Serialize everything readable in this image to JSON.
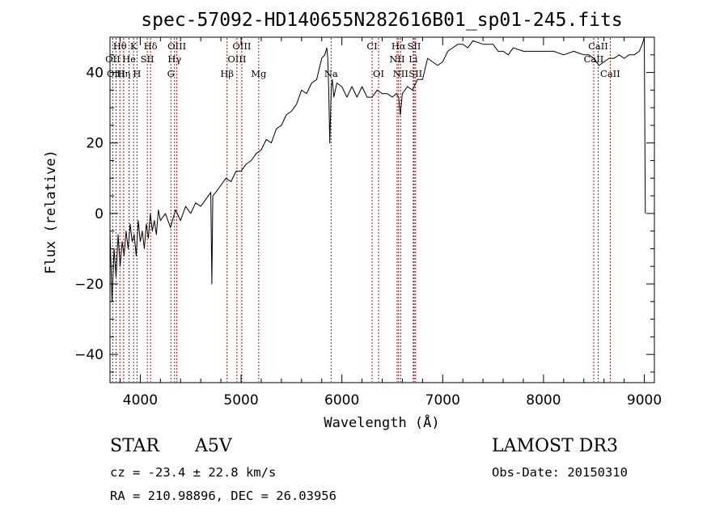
{
  "chart_data": {
    "type": "line",
    "title": "spec-57092-HD140655N282616B01_sp01-245.fits",
    "xlabel": "Wavelength (Å)",
    "ylabel": "Flux (relative)",
    "xlim": [
      3700,
      9100
    ],
    "ylim": [
      -48,
      50
    ],
    "xticks": [
      4000,
      5000,
      6000,
      7000,
      8000,
      9000
    ],
    "yticks": [
      -40,
      -20,
      0,
      20,
      40
    ],
    "series": [
      {
        "name": "flux",
        "x": [
          3700,
          3720,
          3740,
          3760,
          3780,
          3800,
          3820,
          3840,
          3860,
          3880,
          3900,
          3920,
          3940,
          3960,
          3980,
          4000,
          4020,
          4040,
          4060,
          4080,
          4100,
          4120,
          4140,
          4160,
          4180,
          4200,
          4250,
          4300,
          4350,
          4400,
          4450,
          4500,
          4550,
          4600,
          4650,
          4700,
          4710,
          4720,
          4750,
          4800,
          4850,
          4900,
          4950,
          5000,
          5050,
          5100,
          5150,
          5200,
          5250,
          5300,
          5350,
          5400,
          5450,
          5500,
          5550,
          5600,
          5650,
          5700,
          5750,
          5800,
          5830,
          5850,
          5860,
          5870,
          5880,
          5895,
          5905,
          5920,
          5950,
          6000,
          6050,
          6100,
          6150,
          6200,
          6250,
          6300,
          6350,
          6400,
          6450,
          6500,
          6540,
          6563,
          6580,
          6600,
          6650,
          6700,
          6750,
          6800,
          6850,
          6900,
          6950,
          7000,
          7050,
          7100,
          7150,
          7200,
          7250,
          7300,
          7400,
          7500,
          7550,
          7600,
          7650,
          7700,
          7800,
          7900,
          8000,
          8100,
          8200,
          8300,
          8400,
          8450,
          8500,
          8550,
          8600,
          8650,
          8700,
          8750,
          8800,
          8850,
          8900,
          8950,
          8980,
          9000,
          9010
        ],
        "values": [
          -5,
          -25,
          -10,
          -18,
          -6,
          -15,
          -8,
          -12,
          -5,
          -10,
          -3,
          -8,
          -6,
          -12,
          -2,
          -8,
          -5,
          -10,
          -3,
          -7,
          0,
          -5,
          -2,
          -6,
          1,
          -2,
          0,
          -4,
          1,
          -2,
          2,
          0,
          3,
          2,
          4,
          6,
          -20,
          5,
          6,
          8,
          10,
          9,
          12,
          12,
          14,
          15,
          17,
          18,
          21,
          20,
          24,
          25,
          28,
          29,
          31,
          35,
          34,
          37,
          38,
          44,
          45,
          47,
          44,
          35,
          20,
          36,
          38,
          33,
          37,
          36,
          33,
          36,
          33,
          36,
          33,
          33,
          35,
          34,
          34,
          33,
          34,
          33,
          28,
          34,
          36,
          35,
          38,
          38,
          44,
          43,
          42,
          43,
          46,
          47,
          48,
          48,
          47,
          49,
          48,
          48,
          46,
          46,
          45,
          47,
          46,
          46,
          46,
          46,
          45,
          46,
          45,
          45,
          44,
          42,
          43,
          44,
          44,
          45,
          44,
          45,
          45,
          46,
          48,
          50,
          0
        ]
      }
    ],
    "spectral_lines": [
      {
        "label": "Hθ",
        "wave": 3798,
        "row": 1
      },
      {
        "label": "K",
        "wave": 3934,
        "row": 1
      },
      {
        "label": "Hδ",
        "wave": 4102,
        "row": 1
      },
      {
        "label": "OIII",
        "wave": 4363,
        "row": 1
      },
      {
        "label": "OIII",
        "wave": 5007,
        "row": 1
      },
      {
        "label": "CI",
        "wave": 6300,
        "row": 1
      },
      {
        "label": "Hα",
        "wave": 6563,
        "row": 1
      },
      {
        "label": "SII",
        "wave": 6717,
        "row": 1
      },
      {
        "label": "CaII",
        "wave": 8542,
        "row": 1
      },
      {
        "label": "OII",
        "wave": 3727,
        "row": 2
      },
      {
        "label": "He",
        "wave": 3889,
        "row": 2
      },
      {
        "label": "SII",
        "wave": 4070,
        "row": 2
      },
      {
        "label": "Hγ",
        "wave": 4340,
        "row": 2
      },
      {
        "label": "OIII",
        "wave": 4959,
        "row": 2
      },
      {
        "label": "NII",
        "wave": 6548,
        "row": 2
      },
      {
        "label": "Li",
        "wave": 6708,
        "row": 2
      },
      {
        "label": "CaII",
        "wave": 8498,
        "row": 2
      },
      {
        "label": "OIII",
        "wave": 3760,
        "row": 3
      },
      {
        "label": "Hη",
        "wave": 3835,
        "row": 3
      },
      {
        "label": "H",
        "wave": 3968,
        "row": 3
      },
      {
        "label": "G",
        "wave": 4304,
        "row": 3
      },
      {
        "label": "Hβ",
        "wave": 4861,
        "row": 3
      },
      {
        "label": "Mg",
        "wave": 5175,
        "row": 3
      },
      {
        "label": "Na",
        "wave": 5893,
        "row": 3
      },
      {
        "label": "OI",
        "wave": 6364,
        "row": 3
      },
      {
        "label": "NII",
        "wave": 6583,
        "row": 3
      },
      {
        "label": "SII",
        "wave": 6731,
        "row": 3
      },
      {
        "label": "CaII",
        "wave": 8662,
        "row": 3
      }
    ],
    "line_color": "#000000",
    "marker_color": "#cc0000"
  },
  "info": {
    "object_class": "STAR",
    "subclass": "A5V",
    "survey": "LAMOST DR3",
    "redshift": "cz = -23.4 ± 22.8 km/s",
    "obs_date": "Obs-Date: 20150310",
    "coords": "RA = 210.98896, DEC =  26.03956"
  }
}
